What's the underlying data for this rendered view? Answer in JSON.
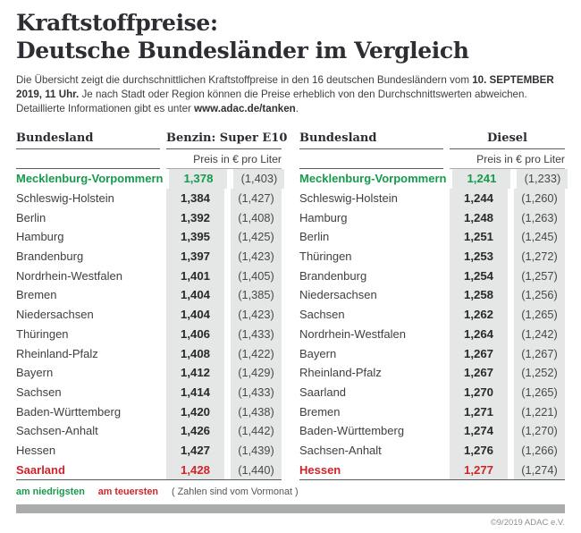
{
  "colors": {
    "lowest_green": "#169b4d",
    "highest_red": "#d2232a",
    "price_cell_bg": "#e4e7e5",
    "rule_dark": "#5a5d5f",
    "footer_bar_gray": "#a9acab"
  },
  "header": {
    "title_line1": "Kraftstoffpreise:",
    "title_line2": "Deutsche Bundesländer im Vergleich",
    "intro_seg1": "Die Übersicht zeigt die durchschnittlichen Kraftstoffpreise in den 16 deutschen Bundesländern vom ",
    "intro_bold1": "10. SEPTEMBER 2019, 11 Uhr.",
    "intro_seg2": " Je nach Stadt oder Region können die Preise erheblich von den Durchschnittswerten abweichen. Detaillierte Informationen gibt es unter ",
    "intro_bold2": "www.adac.de/tanken",
    "intro_seg3": "."
  },
  "tables": [
    {
      "col_bundesland": "Bundesland",
      "fuel": "Benzin: Super E10",
      "unit": "Preis in € pro Liter",
      "rows": [
        {
          "land": "Mecklenburg-Vorpommern",
          "price": "1,378",
          "prev": "(1,403)",
          "mark": "green"
        },
        {
          "land": "Schleswig-Holstein",
          "price": "1,384",
          "prev": "(1,427)",
          "mark": null
        },
        {
          "land": "Berlin",
          "price": "1,392",
          "prev": "(1,408)",
          "mark": null
        },
        {
          "land": "Hamburg",
          "price": "1,395",
          "prev": "(1,425)",
          "mark": null
        },
        {
          "land": "Brandenburg",
          "price": "1,397",
          "prev": "(1,423)",
          "mark": null
        },
        {
          "land": "Nordrhein-Westfalen",
          "price": "1,401",
          "prev": "(1,405)",
          "mark": null
        },
        {
          "land": "Bremen",
          "price": "1,404",
          "prev": "(1,385)",
          "mark": null
        },
        {
          "land": "Niedersachsen",
          "price": "1,404",
          "prev": "(1,423)",
          "mark": null
        },
        {
          "land": "Thüringen",
          "price": "1,406",
          "prev": "(1,433)",
          "mark": null
        },
        {
          "land": "Rheinland-Pfalz",
          "price": "1,408",
          "prev": "(1,422)",
          "mark": null
        },
        {
          "land": "Bayern",
          "price": "1,412",
          "prev": "(1,429)",
          "mark": null
        },
        {
          "land": "Sachsen",
          "price": "1,414",
          "prev": "(1,433)",
          "mark": null
        },
        {
          "land": "Baden-Württemberg",
          "price": "1,420",
          "prev": "(1,438)",
          "mark": null
        },
        {
          "land": "Sachsen-Anhalt",
          "price": "1,426",
          "prev": "(1,442)",
          "mark": null
        },
        {
          "land": "Hessen",
          "price": "1,427",
          "prev": "(1,439)",
          "mark": null
        },
        {
          "land": "Saarland",
          "price": "1,428",
          "prev": "(1,440)",
          "mark": "red"
        }
      ]
    },
    {
      "col_bundesland": "Bundesland",
      "fuel": "Diesel",
      "unit": "Preis in € pro Liter",
      "rows": [
        {
          "land": "Mecklenburg-Vorpommern",
          "price": "1,241",
          "prev": "(1,233)",
          "mark": "green"
        },
        {
          "land": "Schleswig-Holstein",
          "price": "1,244",
          "prev": "(1,260)",
          "mark": null
        },
        {
          "land": "Hamburg",
          "price": "1,248",
          "prev": "(1,263)",
          "mark": null
        },
        {
          "land": "Berlin",
          "price": "1,251",
          "prev": "(1,245)",
          "mark": null
        },
        {
          "land": "Thüringen",
          "price": "1,253",
          "prev": "(1,272)",
          "mark": null
        },
        {
          "land": "Brandenburg",
          "price": "1,254",
          "prev": "(1,257)",
          "mark": null
        },
        {
          "land": "Niedersachsen",
          "price": "1,258",
          "prev": "(1,256)",
          "mark": null
        },
        {
          "land": "Sachsen",
          "price": "1,262",
          "prev": "(1,265)",
          "mark": null
        },
        {
          "land": "Nordrhein-Westfalen",
          "price": "1,264",
          "prev": "(1,242)",
          "mark": null
        },
        {
          "land": "Bayern",
          "price": "1,267",
          "prev": "(1,267)",
          "mark": null
        },
        {
          "land": "Rheinland-Pfalz",
          "price": "1,267",
          "prev": "(1,252)",
          "mark": null
        },
        {
          "land": "Saarland",
          "price": "1,270",
          "prev": "(1,265)",
          "mark": null
        },
        {
          "land": "Bremen",
          "price": "1,271",
          "prev": "(1,221)",
          "mark": null
        },
        {
          "land": "Baden-Württemberg",
          "price": "1,274",
          "prev": "(1,270)",
          "mark": null
        },
        {
          "land": "Sachsen-Anhalt",
          "price": "1,276",
          "prev": "(1,266)",
          "mark": null
        },
        {
          "land": "Hessen",
          "price": "1,277",
          "prev": "(1,274)",
          "mark": "red"
        }
      ]
    }
  ],
  "legend": {
    "lowest": "am niedrigsten",
    "highest": "am teuersten",
    "note": "( Zahlen sind vom Vormonat )"
  },
  "footer": {
    "copyright": "©9/2019 ADAC e.V."
  },
  "chart_data": [
    {
      "type": "table",
      "title": "Benzin: Super E10",
      "unit": "Preis in € pro Liter",
      "columns": [
        "Bundesland",
        "Preis",
        "Vormonat"
      ],
      "rows": [
        [
          "Mecklenburg-Vorpommern",
          1.378,
          1.403
        ],
        [
          "Schleswig-Holstein",
          1.384,
          1.427
        ],
        [
          "Berlin",
          1.392,
          1.408
        ],
        [
          "Hamburg",
          1.395,
          1.425
        ],
        [
          "Brandenburg",
          1.397,
          1.423
        ],
        [
          "Nordrhein-Westfalen",
          1.401,
          1.405
        ],
        [
          "Bremen",
          1.404,
          1.385
        ],
        [
          "Niedersachsen",
          1.404,
          1.423
        ],
        [
          "Thüringen",
          1.406,
          1.433
        ],
        [
          "Rheinland-Pfalz",
          1.408,
          1.422
        ],
        [
          "Bayern",
          1.412,
          1.429
        ],
        [
          "Sachsen",
          1.414,
          1.433
        ],
        [
          "Baden-Württemberg",
          1.42,
          1.438
        ],
        [
          "Sachsen-Anhalt",
          1.426,
          1.442
        ],
        [
          "Hessen",
          1.427,
          1.439
        ],
        [
          "Saarland",
          1.428,
          1.44
        ]
      ],
      "lowest": "Mecklenburg-Vorpommern",
      "highest": "Saarland"
    },
    {
      "type": "table",
      "title": "Diesel",
      "unit": "Preis in € pro Liter",
      "columns": [
        "Bundesland",
        "Preis",
        "Vormonat"
      ],
      "rows": [
        [
          "Mecklenburg-Vorpommern",
          1.241,
          1.233
        ],
        [
          "Schleswig-Holstein",
          1.244,
          1.26
        ],
        [
          "Hamburg",
          1.248,
          1.263
        ],
        [
          "Berlin",
          1.251,
          1.245
        ],
        [
          "Thüringen",
          1.253,
          1.272
        ],
        [
          "Brandenburg",
          1.254,
          1.257
        ],
        [
          "Niedersachsen",
          1.258,
          1.256
        ],
        [
          "Sachsen",
          1.262,
          1.265
        ],
        [
          "Nordrhein-Westfalen",
          1.264,
          1.242
        ],
        [
          "Bayern",
          1.267,
          1.267
        ],
        [
          "Rheinland-Pfalz",
          1.267,
          1.252
        ],
        [
          "Saarland",
          1.27,
          1.265
        ],
        [
          "Bremen",
          1.271,
          1.221
        ],
        [
          "Baden-Württemberg",
          1.274,
          1.27
        ],
        [
          "Sachsen-Anhalt",
          1.276,
          1.266
        ],
        [
          "Hessen",
          1.277,
          1.274
        ]
      ],
      "lowest": "Mecklenburg-Vorpommern",
      "highest": "Hessen"
    }
  ]
}
